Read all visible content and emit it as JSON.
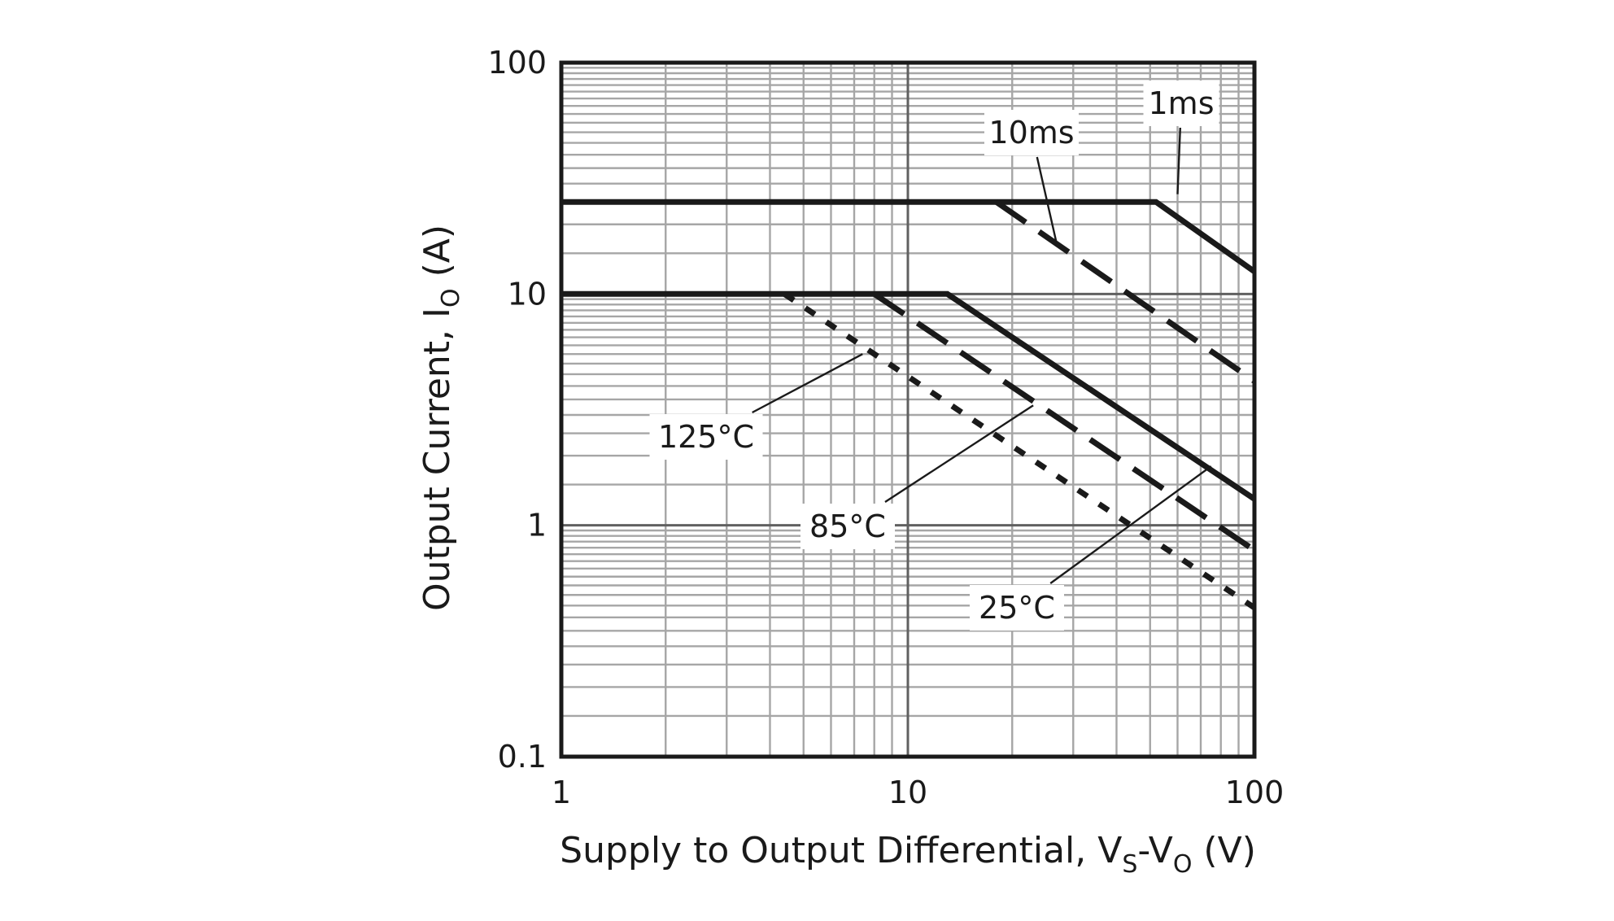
{
  "chart_data": {
    "type": "line",
    "x_scale": "log",
    "y_scale": "log",
    "xlim": [
      1,
      100
    ],
    "ylim": [
      0.1,
      100
    ],
    "grid": true,
    "x_ticks": [
      "1",
      "10",
      "100"
    ],
    "y_ticks": [
      "100",
      "10",
      "1",
      "0.1"
    ],
    "xlabel": {
      "main": "Supply to Output Differential, V",
      "sub1": "S",
      "mid": "-V",
      "sub2": "O",
      "end": " (V)"
    },
    "ylabel": {
      "main": "Output Current, I",
      "sub": "O",
      "end": " (A)"
    },
    "series": [
      {
        "name": "1ms",
        "style": "solid",
        "points": [
          [
            1,
            25
          ],
          [
            52,
            25
          ],
          [
            100,
            12.5
          ]
        ]
      },
      {
        "name": "10ms",
        "style": "long-dash",
        "points": [
          [
            18,
            25
          ],
          [
            100,
            4.2
          ]
        ]
      },
      {
        "name": "25°C",
        "style": "solid",
        "points": [
          [
            1,
            10
          ],
          [
            13,
            10
          ],
          [
            100,
            1.3
          ]
        ]
      },
      {
        "name": "85°C",
        "style": "long-dash",
        "points": [
          [
            8,
            10
          ],
          [
            100,
            0.78
          ]
        ]
      },
      {
        "name": "125°C",
        "style": "short-dash",
        "points": [
          [
            4.4,
            10
          ],
          [
            100,
            0.44
          ]
        ]
      }
    ],
    "annotations": [
      {
        "label": "1ms",
        "target": [
          60,
          27
        ]
      },
      {
        "label": "10ms",
        "target": [
          27,
          16
        ]
      },
      {
        "label": "125°C",
        "target": [
          7.4,
          5.5
        ]
      },
      {
        "label": "85°C",
        "target": [
          23,
          3.3
        ]
      },
      {
        "label": "25°C",
        "target": [
          75,
          1.8
        ]
      }
    ]
  }
}
